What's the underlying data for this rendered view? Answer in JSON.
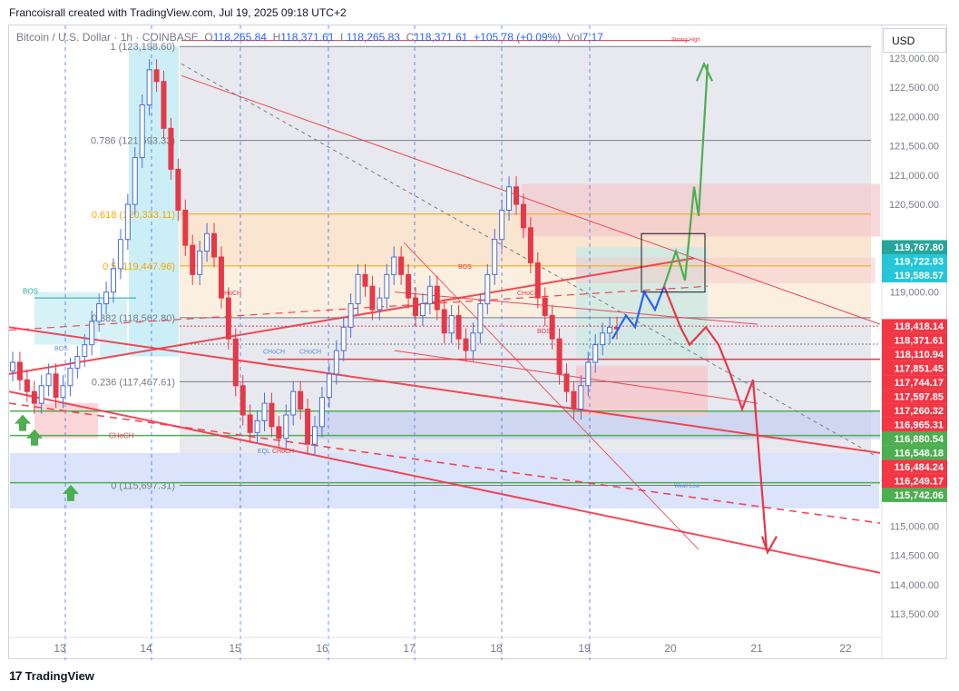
{
  "header": {
    "attribution": "Francoisrall created with TradingView.com, Jul 19, 2025 09:18 UTC+2"
  },
  "symbol_bar": {
    "name": "Bitcoin / U.S. Dollar · 1h · COINBASE",
    "open_label": "O",
    "open": "118,265.84",
    "high_label": "H",
    "high": "118,371.61",
    "low_label": "L",
    "low": "118,265.83",
    "close_label": "C",
    "close": "118,371.61",
    "change": "+105.78 (+0.09%)",
    "vol_label": "Vol",
    "vol": "7.17"
  },
  "currency": "USD",
  "footer": {
    "logo_text": "TradingView",
    "logo_mark": "17"
  },
  "colors": {
    "up": "#26a69a",
    "down": "#ef5350",
    "trend": "#f23645",
    "fib": "#f7a600",
    "bull_path": "#4caf50",
    "base_path": "#2962ff",
    "bear_path": "#e53949"
  },
  "chart_data": {
    "type": "candlestick",
    "title": "",
    "xlabel": "",
    "ylabel": "",
    "ylim": [
      113000,
      123300
    ],
    "x_ticks": [
      "13",
      "14",
      "15",
      "16",
      "17",
      "18",
      "19",
      "20",
      "21",
      "22"
    ],
    "y_ticks": [
      "123,000.00",
      "122,500.00",
      "122,000.00",
      "121,500.00",
      "121,000.00",
      "120,500.00",
      "119,000.00",
      "115,000.00",
      "114,500.00",
      "114,000.00",
      "113,500.00"
    ],
    "y_tick_values": [
      123000,
      122500,
      122000,
      121500,
      121000,
      120500,
      119000,
      115000,
      114500,
      114000,
      113500
    ],
    "price_tags": [
      {
        "label": "119,767.80",
        "value": 119767.8,
        "color": "#26a69a"
      },
      {
        "label": "119,722.93",
        "value": 119722.93,
        "color": "#26c6da"
      },
      {
        "label": "119,588.57",
        "value": 119588.57,
        "color": "#26c6da"
      },
      {
        "label": "118,418.14",
        "value": 118418.14,
        "color": "#f23645"
      },
      {
        "label": "118,371.61",
        "value": 118371.61,
        "color": "#f23645"
      },
      {
        "label": "118,110.94",
        "value": 118110.94,
        "color": "#f23645"
      },
      {
        "label": "117,851.45",
        "value": 117851.45,
        "color": "#f23645"
      },
      {
        "label": "117,744.17",
        "value": 117744.17,
        "color": "#f23645"
      },
      {
        "label": "117,597.85",
        "value": 117597.85,
        "color": "#f23645"
      },
      {
        "label": "117,260.32",
        "value": 117260.32,
        "color": "#f23645"
      },
      {
        "label": "116,965.31",
        "value": 116965.31,
        "color": "#f23645"
      },
      {
        "label": "116,880.54",
        "value": 116880.54,
        "color": "#4caf50"
      },
      {
        "label": "116,548.18",
        "value": 116548.18,
        "color": "#4caf50"
      },
      {
        "label": "116,484.24",
        "value": 116484.24,
        "color": "#f23645"
      },
      {
        "label": "116,249.17",
        "value": 116249.17,
        "color": "#f23645"
      },
      {
        "label": "115,742.06",
        "value": 115742.06,
        "color": "#4caf50"
      }
    ],
    "fib_levels": [
      {
        "label": "1 (123,198.60)",
        "value": 123198.6,
        "color": "#787b86"
      },
      {
        "label": "0.786 (121,593.33)",
        "value": 121593.33,
        "color": "#787b86"
      },
      {
        "label": "0.618 (120,333.11)",
        "value": 120333.11,
        "color": "#f7a600"
      },
      {
        "label": "0.5 (119,447.96)",
        "value": 119447.96,
        "color": "#f7a600"
      },
      {
        "label": "0.382 (118,562.80)",
        "value": 118562.8,
        "color": "#787b86"
      },
      {
        "label": "0.236 (117,467.61)",
        "value": 117467.61,
        "color": "#787b86"
      },
      {
        "label": "0 (115,697.31)",
        "value": 115697.31,
        "color": "#787b86"
      }
    ],
    "annotations": [
      "BOS",
      "BOS",
      "CHoCH",
      "CHoCH",
      "CHoCH",
      "CHoCH",
      "CHoCH",
      "CHoCH",
      "EQL",
      "CHoCH",
      "BOS",
      "BOS",
      "Strong High",
      "Weak Low"
    ],
    "closes": [
      117800,
      117500,
      117300,
      117100,
      117400,
      117600,
      117200,
      117400,
      117700,
      117900,
      118100,
      118500,
      118800,
      119000,
      119400,
      119900,
      120500,
      121300,
      122200,
      122800,
      122600,
      121800,
      121100,
      120400,
      119800,
      119300,
      119700,
      120000,
      119600,
      118900,
      118200,
      117400,
      116900,
      116600,
      116800,
      117100,
      116700,
      116500,
      116900,
      117300,
      117000,
      116400,
      116700,
      117200,
      117600,
      118000,
      118400,
      118800,
      119300,
      119100,
      118700,
      118900,
      119300,
      119600,
      119300,
      118900,
      118600,
      118800,
      119100,
      118700,
      118300,
      118600,
      118200,
      118000,
      118300,
      118800,
      119300,
      119900,
      120400,
      120800,
      120500,
      120100,
      119500,
      118900,
      118600,
      118200,
      117600,
      117300,
      117000,
      117400,
      117800,
      118100,
      118300,
      118400,
      118371
    ]
  }
}
